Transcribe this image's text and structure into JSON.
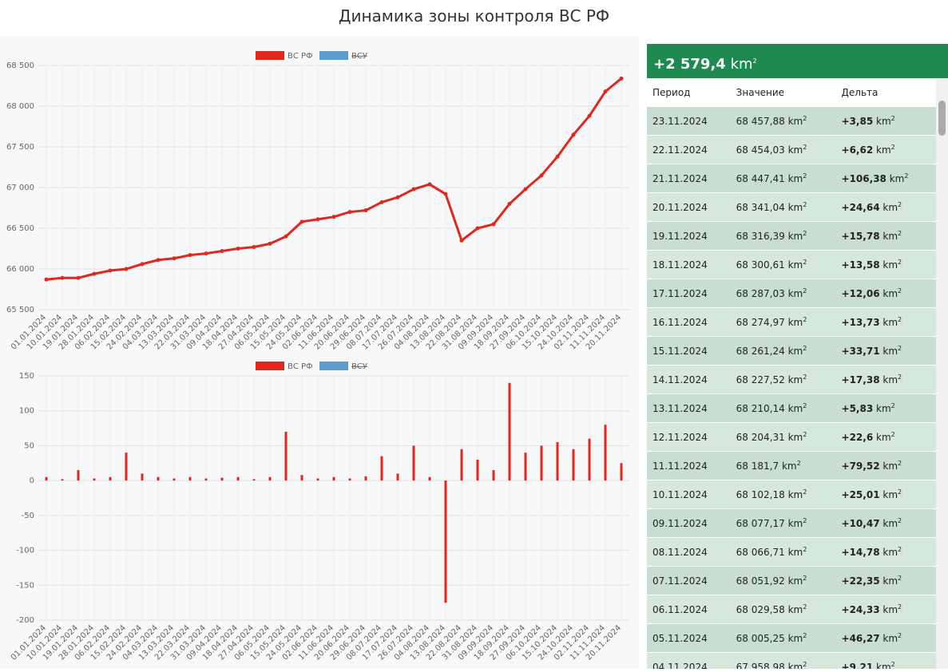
{
  "title": "Динамика зоны контроля ВС РФ",
  "chart_data": [
    {
      "type": "line",
      "color": "#e0281e",
      "legend": [
        {
          "name": "ВС РФ",
          "color": "#e0281e",
          "hidden": false
        },
        {
          "name": "ВСУ",
          "color": "#5a9bd0",
          "hidden": true
        }
      ],
      "categories": [
        "01.01.2024",
        "10.01.2024",
        "19.01.2024",
        "28.01.2024",
        "06.02.2024",
        "15.02.2024",
        "24.02.2024",
        "04.03.2024",
        "13.03.2024",
        "22.03.2024",
        "31.03.2024",
        "09.04.2024",
        "18.04.2024",
        "27.04.2024",
        "06.05.2024",
        "15.05.2024",
        "24.05.2024",
        "02.06.2024",
        "11.06.2024",
        "20.06.2024",
        "29.06.2024",
        "08.07.2024",
        "17.07.2024",
        "26.07.2024",
        "04.08.2024",
        "13.08.2024",
        "22.08.2024",
        "31.08.2024",
        "09.09.2024",
        "18.09.2024",
        "27.09.2024",
        "06.10.2024",
        "15.10.2024",
        "24.10.2024",
        "02.11.2024",
        "11.11.2024",
        "20.11.2024"
      ],
      "values": [
        65870,
        65890,
        65890,
        65940,
        65980,
        66000,
        66060,
        66110,
        66130,
        66170,
        66190,
        66220,
        66250,
        66270,
        66310,
        66400,
        66580,
        66610,
        66640,
        66700,
        66720,
        66820,
        66880,
        66980,
        67040,
        66920,
        66350,
        66500,
        66550,
        66800,
        66980,
        67150,
        67380,
        67650,
        67880,
        68180,
        68340
      ],
      "ylim": [
        65500,
        68500
      ],
      "yticks": [
        {
          "value": 65500,
          "label": "65 500"
        },
        {
          "value": 66000,
          "label": "66 000"
        },
        {
          "value": 66500,
          "label": "66 500"
        },
        {
          "value": 67000,
          "label": "67 000"
        },
        {
          "value": 67500,
          "label": "67 500"
        },
        {
          "value": 68000,
          "label": "68 000"
        },
        {
          "value": 68500,
          "label": "68 500"
        }
      ],
      "grid": true
    },
    {
      "type": "bar",
      "color": "#e0281e",
      "legend": [
        {
          "name": "ВС РФ",
          "color": "#e0281e",
          "hidden": false
        },
        {
          "name": "ВСУ",
          "color": "#5a9bd0",
          "hidden": true
        }
      ],
      "categories": [
        "01.01.2024",
        "10.01.2024",
        "19.01.2024",
        "28.01.2024",
        "06.02.2024",
        "15.02.2024",
        "24.02.2024",
        "04.03.2024",
        "13.03.2024",
        "22.03.2024",
        "31.03.2024",
        "09.04.2024",
        "18.04.2024",
        "27.04.2024",
        "06.05.2024",
        "15.05.2024",
        "24.05.2024",
        "02.06.2024",
        "11.06.2024",
        "20.06.2024",
        "29.06.2024",
        "08.07.2024",
        "17.07.2024",
        "26.07.2024",
        "04.08.2024",
        "13.08.2024",
        "22.08.2024",
        "31.08.2024",
        "09.09.2024",
        "18.09.2024",
        "27.09.2024",
        "06.10.2024",
        "15.10.2024",
        "24.10.2024",
        "02.11.2024",
        "11.11.2024",
        "20.11.2024"
      ],
      "values": [
        5,
        2,
        15,
        3,
        5,
        40,
        10,
        5,
        3,
        5,
        3,
        4,
        5,
        2,
        5,
        70,
        8,
        3,
        5,
        3,
        6,
        35,
        10,
        50,
        5,
        -175,
        45,
        30,
        15,
        140,
        40,
        50,
        55,
        45,
        60,
        80,
        25
      ],
      "ylim": [
        -200,
        150
      ],
      "yticks": [
        -200,
        -150,
        -100,
        -50,
        0,
        50,
        100,
        150
      ],
      "grid": true
    }
  ],
  "table": {
    "total": "+2 579,4",
    "unit": "km",
    "unit_power": "2",
    "columns": [
      "Период",
      "Значение",
      "Дельта"
    ],
    "rows": [
      [
        "23.11.2024",
        "68 457,88",
        "+3,85"
      ],
      [
        "22.11.2024",
        "68 454,03",
        "+6,62"
      ],
      [
        "21.11.2024",
        "68 447,41",
        "+106,38"
      ],
      [
        "20.11.2024",
        "68 341,04",
        "+24,64"
      ],
      [
        "19.11.2024",
        "68 316,39",
        "+15,78"
      ],
      [
        "18.11.2024",
        "68 300,61",
        "+13,58"
      ],
      [
        "17.11.2024",
        "68 287,03",
        "+12,06"
      ],
      [
        "16.11.2024",
        "68 274,97",
        "+13,73"
      ],
      [
        "15.11.2024",
        "68 261,24",
        "+33,71"
      ],
      [
        "14.11.2024",
        "68 227,52",
        "+17,38"
      ],
      [
        "13.11.2024",
        "68 210,14",
        "+5,83"
      ],
      [
        "12.11.2024",
        "68 204,31",
        "+22,6"
      ],
      [
        "11.11.2024",
        "68 181,7",
        "+79,52"
      ],
      [
        "10.11.2024",
        "68 102,18",
        "+25,01"
      ],
      [
        "09.11.2024",
        "68 077,17",
        "+10,47"
      ],
      [
        "08.11.2024",
        "68 066,71",
        "+14,78"
      ],
      [
        "07.11.2024",
        "68 051,92",
        "+22,35"
      ],
      [
        "06.11.2024",
        "68 029,58",
        "+24,33"
      ],
      [
        "05.11.2024",
        "68 005,25",
        "+46,27"
      ],
      [
        "04.11.2024",
        "67 958,98",
        "+9,21"
      ]
    ]
  }
}
